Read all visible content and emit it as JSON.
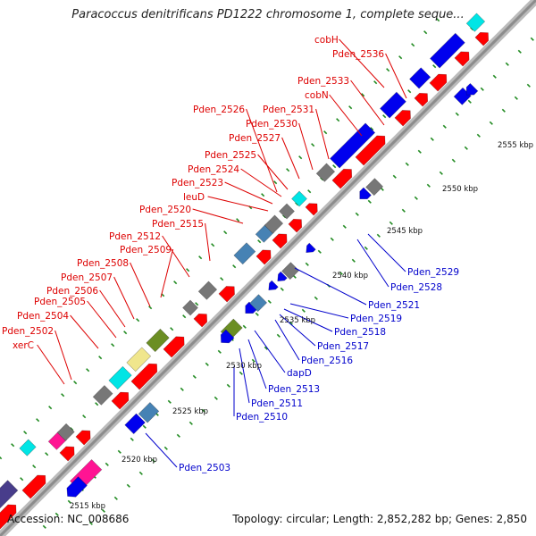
{
  "title": "Paracoccus denitrificans PD1222 chromosome 1, complete seque...",
  "footer": {
    "accession": "Accession: NC_008686",
    "topology": "Topology: circular; Length: 2,852,282 bp; Genes: 2,850"
  },
  "colors": {
    "backbone": "#9a9a9a",
    "forward_label": "#dd0000",
    "reverse_label": "#0000cc",
    "tick": "#228b22",
    "gene_red": "#ff0000",
    "gene_blue": "#0000ee",
    "gene_cyan": "#00e5e5",
    "gene_pink": "#ff1493",
    "gene_gray": "#777777",
    "gene_olive": "#6b8e23",
    "gene_khaki": "#f0e68c",
    "gene_steel": "#4682b4",
    "gene_purple": "#483d8b"
  },
  "kbp_labels": [
    "2515 kbp",
    "2520 kbp",
    "2525 kbp",
    "2530 kbp",
    "2535 kbp",
    "2540 kbp",
    "2545 kbp",
    "2550 kbp",
    "2555 kbp"
  ],
  "forward_genes": [
    "cobH",
    "Pden_2536",
    "Pden_2533",
    "cobN",
    "Pden_2531",
    "Pden_2530",
    "Pden_2527",
    "Pden_2526",
    "Pden_2525",
    "Pden_2524",
    "Pden_2523",
    "leuD",
    "Pden_2520",
    "Pden_2515",
    "Pden_2512",
    "Pden_2509",
    "Pden_2508",
    "Pden_2507",
    "Pden_2506",
    "Pden_2505",
    "Pden_2504",
    "Pden_2502",
    "xerC"
  ],
  "reverse_genes": [
    "Pden_2529",
    "Pden_2528",
    "Pden_2521",
    "Pden_2519",
    "Pden_2518",
    "Pden_2517",
    "Pden_2516",
    "dapD",
    "Pden_2513",
    "Pden_2511",
    "Pden_2510",
    "Pden_2503"
  ]
}
